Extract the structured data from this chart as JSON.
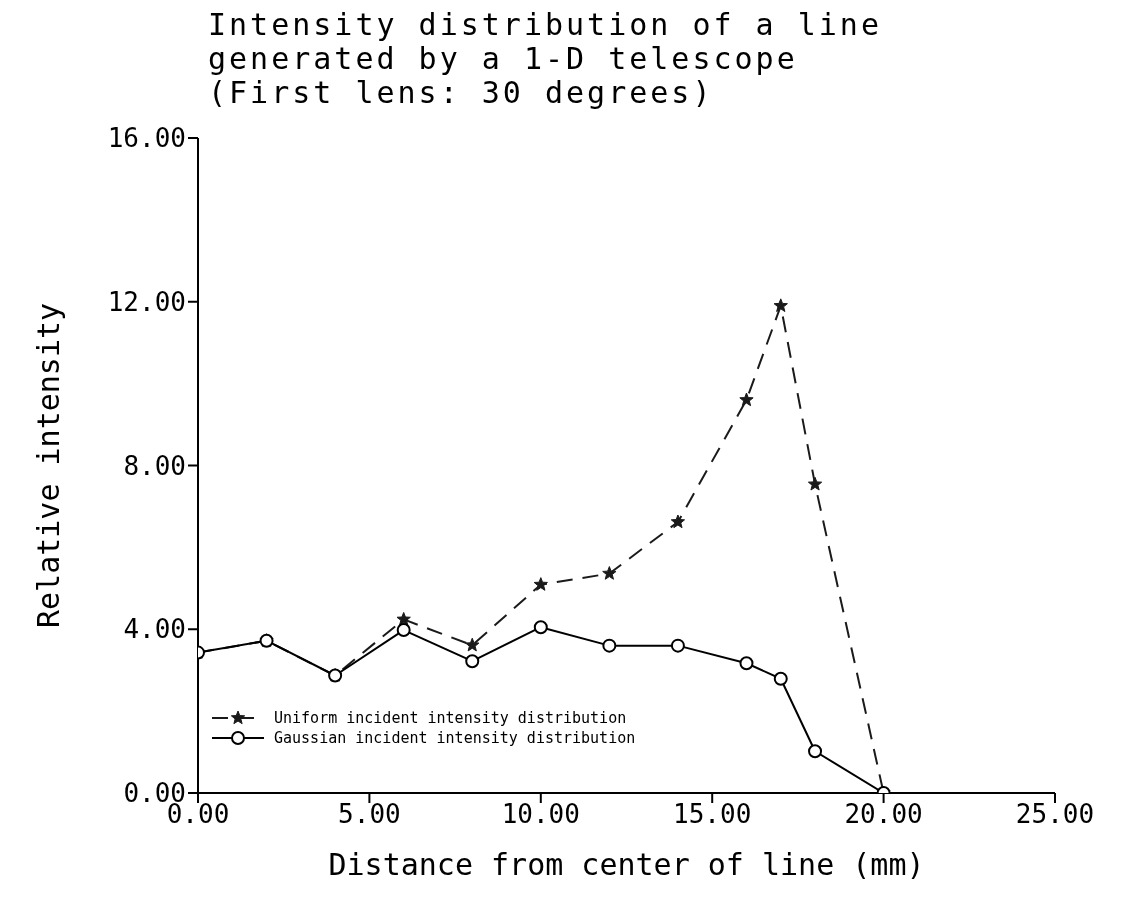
{
  "chart_data": {
    "type": "line",
    "title": "Intensity distribution of a line\ngenerated by a 1-D telescope\n(First lens: 30 degrees)",
    "xlabel": "Distance from center of line (mm)",
    "ylabel": "Relative intensity",
    "x": [
      0,
      2,
      4,
      6,
      8,
      10,
      12,
      14,
      16,
      17,
      18,
      20
    ],
    "series": [
      {
        "name": "Uniform incident intensity distribution",
        "color": "#1a1a1a",
        "marker": "star",
        "line_style": "dashed",
        "values": [
          3.43,
          3.72,
          2.87,
          4.24,
          3.61,
          5.09,
          5.36,
          6.62,
          9.6,
          11.9,
          7.54,
          0
        ]
      },
      {
        "name": "Gaussian incident intensity distribution",
        "color": "#000000",
        "marker": "circle",
        "line_style": "solid",
        "values": [
          3.43,
          3.72,
          2.87,
          3.98,
          3.22,
          4.05,
          3.6,
          3.6,
          3.17,
          2.79,
          1.02,
          0
        ]
      }
    ],
    "xlim": [
      0,
      25
    ],
    "xticks": [
      {
        "value": 0,
        "label": "0.00"
      },
      {
        "value": 5,
        "label": "5.00"
      },
      {
        "value": 10,
        "label": "10.00"
      },
      {
        "value": 15,
        "label": "15.00"
      },
      {
        "value": 20,
        "label": "20.00"
      },
      {
        "value": 25,
        "label": "25.00"
      }
    ],
    "ylim": [
      0,
      16
    ],
    "yticks": [
      {
        "value": 0,
        "label": "0.00"
      },
      {
        "value": 4,
        "label": "4.00"
      },
      {
        "value": 8,
        "label": "8.00"
      },
      {
        "value": 12,
        "label": "12.00"
      },
      {
        "value": 16,
        "label": "16.00"
      }
    ],
    "grid": false,
    "legend": "bottom left"
  }
}
